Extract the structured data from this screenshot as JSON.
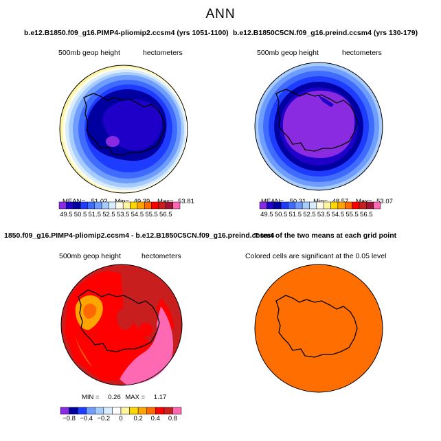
{
  "page": {
    "title": "ANN"
  },
  "panels": [
    {
      "title": "b.e12.B1850.f09_g16.PIMP4-pliomip2.ccsm4 (yrs 1051-1100)",
      "field": "500mb geop height",
      "units": "hectometers",
      "stats": {
        "mean_label": "MEAN=",
        "mean": "51.02",
        "min_label": "Min=",
        "min": "49.39",
        "max_label": "Max=",
        "max": "53.81"
      },
      "ticks": [
        "49.5",
        "50.5",
        "51.5",
        "52.5",
        "53.5",
        "54.5",
        "55.5",
        "56.5"
      ]
    },
    {
      "title": "b.e12.B1850C5CN.f09_g16.preind.ccsm4 (yrs 130-179)",
      "field": "500mb geop height",
      "units": "hectometers",
      "stats": {
        "mean_label": "MEAN=",
        "mean": "50.31",
        "min_label": "Min=",
        "min": "48.57",
        "max_label": "Max=",
        "max": "53.07"
      },
      "ticks": [
        "49.5",
        "50.5",
        "51.5",
        "52.5",
        "53.5",
        "54.5",
        "55.5",
        "56.5"
      ]
    },
    {
      "title": "1850.f09_g16.PIMP4-pliomip2.ccsm4 - b.e12.B1850C5CN.f09_g16.preind.ccsm4",
      "field": "500mb geop height",
      "units": "hectometers",
      "stats": {
        "min_label": "MIN =",
        "min": "0.26",
        "max_label": "MAX =",
        "max": "1.17"
      },
      "ticks": [
        "−0.8",
        "−0.4",
        "−0.2",
        "0",
        "0.2",
        "0.4",
        "0.8"
      ]
    },
    {
      "title": "T-test of the two means at each grid point",
      "field": "Colored cells are significant at the 0.05 level"
    }
  ],
  "colors": {
    "abs_scale": [
      "#8a2be2",
      "#1e00c8",
      "#0000a0",
      "#1e3cff",
      "#3f6cff",
      "#6f9dff",
      "#a6cbff",
      "#d8ecff",
      "#fffde8",
      "#fff5a0",
      "#ffd700",
      "#ffa500",
      "#ff6a00",
      "#ff0000",
      "#c81e1e",
      "#a0143c",
      "#ff69b4"
    ],
    "diff_scale": [
      "#8a2be2",
      "#0000a0",
      "#1e3cff",
      "#6f9dff",
      "#a6cbff",
      "#d8ecff",
      "#ffffff",
      "#fff5a0",
      "#ffd700",
      "#ffa500",
      "#ff6a00",
      "#ff0000",
      "#c81e1e",
      "#ff69b4"
    ],
    "significant": "#ff6e00"
  }
}
